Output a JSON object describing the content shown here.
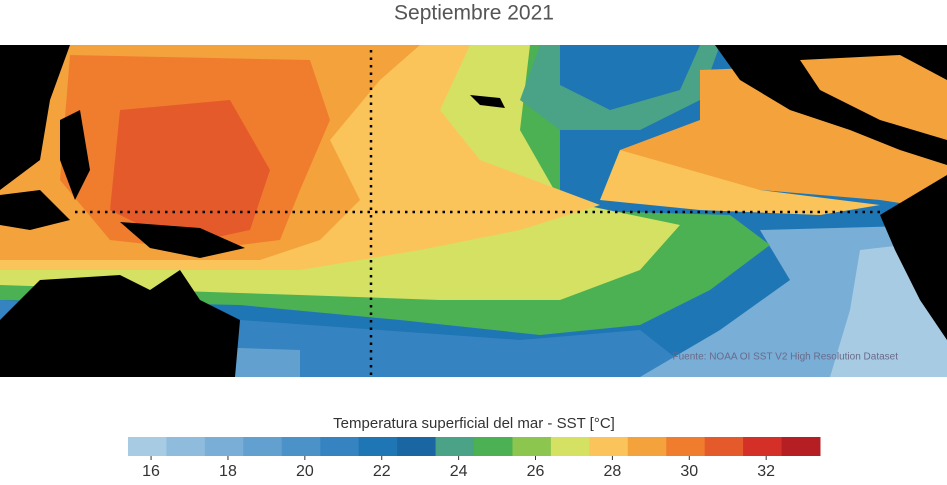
{
  "map": {
    "title": "Septiembre 2021",
    "source": "Fuente: NOAA OI SST V2 High Resolution Dataset",
    "colorbar": {
      "label": "Temperatura superficial del mar - SST  [°C]",
      "lim": [
        15.4,
        33.4
      ],
      "ticks": [
        16,
        18,
        20,
        22,
        24,
        26,
        28,
        30,
        32
      ],
      "colors": [
        "#a6cbe3",
        "#8fbcdc",
        "#79aed6",
        "#62a0cf",
        "#4b92c8",
        "#3584c1",
        "#1f76b4",
        "#1a66a3",
        "#4aa386",
        "#4bb153",
        "#8cc64f",
        "#d5e163",
        "#fbc45a",
        "#f4a23b",
        "#f07d2e",
        "#e55a2a",
        "#d43027",
        "#b51f24"
      ]
    }
  }
}
